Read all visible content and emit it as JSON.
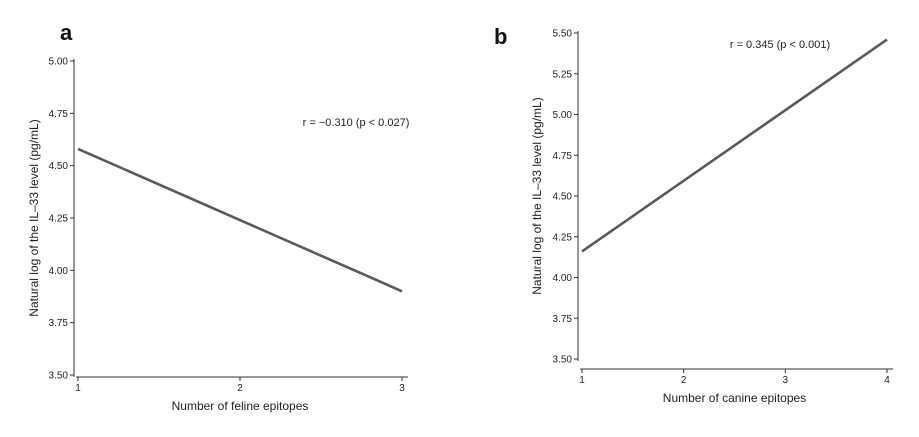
{
  "chart_data": [
    {
      "panel_label": "a",
      "type": "line",
      "xlabel": "Number of feline epitopes",
      "ylabel": "Natural log of the IL–33 level (pg/mL)",
      "xlim": [
        1,
        3
      ],
      "ylim": [
        3.5,
        5.0
      ],
      "x_ticks": [
        1,
        2,
        3
      ],
      "y_ticks": [
        "3.50",
        "3.75",
        "4.00",
        "4.25",
        "4.50",
        "4.75",
        "5.00"
      ],
      "grid": false,
      "line_color": "#5a5a5a",
      "series": [
        {
          "x": [
            1,
            3
          ],
          "y": [
            4.58,
            3.9
          ]
        }
      ],
      "annotation": "r = −0.310 (p < 0.027)"
    },
    {
      "panel_label": "b",
      "type": "line",
      "xlabel": "Number of canine epitopes",
      "ylabel": "Natural log of the IL–33 level (pg/mL)",
      "xlim": [
        1,
        4
      ],
      "ylim": [
        3.5,
        5.5
      ],
      "x_ticks": [
        1,
        2,
        3,
        4
      ],
      "y_ticks": [
        "3.50",
        "3.75",
        "4.00",
        "4.25",
        "4.50",
        "4.75",
        "5.00",
        "5.25",
        "5.50"
      ],
      "grid": false,
      "line_color": "#5a5a5a",
      "series": [
        {
          "x": [
            1,
            4
          ],
          "y": [
            4.16,
            5.46
          ]
        }
      ],
      "annotation": "r = 0.345 (p < 0.001)"
    }
  ]
}
